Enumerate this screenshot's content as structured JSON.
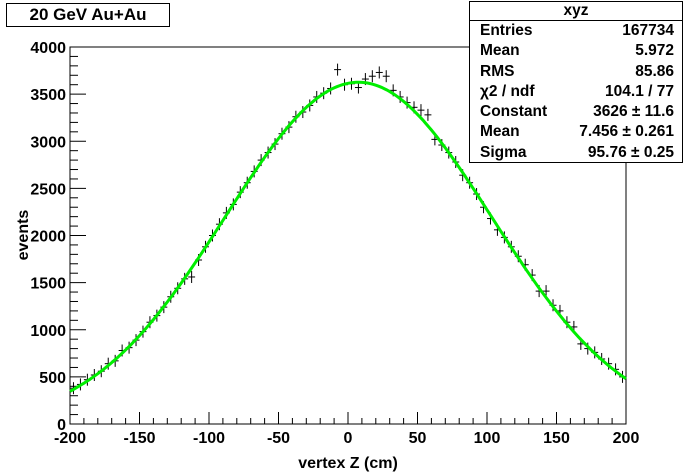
{
  "title": "20 GeV Au+Au",
  "stats": {
    "name": "xyz",
    "rows": [
      {
        "label": "Entries",
        "value": "167734"
      },
      {
        "label": "Mean",
        "value": "5.972"
      },
      {
        "label": "RMS",
        "value": "85.86"
      },
      {
        "label": "χ2 / ndf",
        "value": "104.1 / 77"
      },
      {
        "label": "Constant",
        "value": "3626 ± 11.6"
      },
      {
        "label": "Mean",
        "value": "7.456 ± 0.261"
      },
      {
        "label": "Sigma",
        "value": "95.76 ± 0.25"
      }
    ]
  },
  "colors": {
    "fit": "#00ee00",
    "points": "#000000"
  },
  "chart_data": {
    "type": "scatter",
    "title": "20 GeV Au+Au",
    "xlabel": "vertex Z (cm)",
    "ylabel": "events",
    "xlim": [
      -200,
      200
    ],
    "ylim": [
      0,
      4000
    ],
    "xticks": [
      -200,
      -150,
      -100,
      -50,
      0,
      50,
      100,
      150,
      200
    ],
    "yticks": [
      0,
      500,
      1000,
      1500,
      2000,
      2500,
      3000,
      3500,
      4000
    ],
    "bin_width": 5,
    "x": [
      -197.5,
      -192.5,
      -187.5,
      -182.5,
      -177.5,
      -172.5,
      -167.5,
      -162.5,
      -157.5,
      -152.5,
      -147.5,
      -142.5,
      -137.5,
      -132.5,
      -127.5,
      -122.5,
      -117.5,
      -112.5,
      -107.5,
      -102.5,
      -97.5,
      -92.5,
      -87.5,
      -82.5,
      -77.5,
      -72.5,
      -67.5,
      -62.5,
      -57.5,
      -52.5,
      -47.5,
      -42.5,
      -37.5,
      -32.5,
      -27.5,
      -22.5,
      -17.5,
      -12.5,
      -7.5,
      -2.5,
      2.5,
      7.5,
      12.5,
      17.5,
      22.5,
      27.5,
      32.5,
      37.5,
      42.5,
      47.5,
      52.5,
      57.5,
      62.5,
      67.5,
      72.5,
      77.5,
      82.5,
      87.5,
      92.5,
      97.5,
      102.5,
      107.5,
      112.5,
      117.5,
      122.5,
      127.5,
      132.5,
      137.5,
      142.5,
      147.5,
      152.5,
      157.5,
      162.5,
      167.5,
      172.5,
      177.5,
      182.5,
      187.5,
      192.5,
      197.5
    ],
    "y": [
      380,
      420,
      470,
      520,
      560,
      640,
      670,
      780,
      810,
      890,
      980,
      1080,
      1150,
      1240,
      1350,
      1440,
      1540,
      1560,
      1740,
      1880,
      2000,
      2120,
      2240,
      2330,
      2460,
      2560,
      2680,
      2800,
      2880,
      2970,
      3080,
      3150,
      3260,
      3310,
      3380,
      3470,
      3510,
      3560,
      3760,
      3600,
      3610,
      3570,
      3660,
      3690,
      3730,
      3690,
      3540,
      3470,
      3410,
      3360,
      3330,
      3280,
      3020,
      2960,
      2880,
      2780,
      2640,
      2560,
      2440,
      2300,
      2180,
      2060,
      1980,
      1880,
      1780,
      1690,
      1580,
      1410,
      1410,
      1260,
      1200,
      1080,
      1030,
      850,
      800,
      760,
      690,
      640,
      580,
      500
    ],
    "fit": {
      "function": "gaus",
      "constant": 3626,
      "mean": 7.456,
      "sigma": 95.76
    }
  }
}
